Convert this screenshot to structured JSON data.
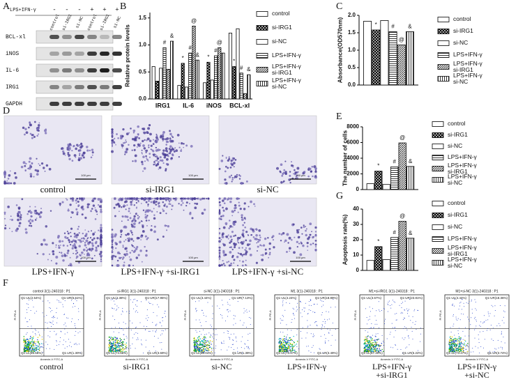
{
  "panel_labels": [
    "A",
    "B",
    "C",
    "D",
    "E",
    "F",
    "G"
  ],
  "blot": {
    "treatment": "LPS+IFN-γ",
    "signs": [
      "-",
      "-",
      "-",
      "+",
      "+",
      "+"
    ],
    "lanes": [
      "control",
      "si-IRG1",
      "si-NC",
      "control",
      "si-IRG1",
      "si-NC"
    ],
    "proteins": [
      "BCL-xl",
      "iNOS",
      "IL-6",
      "IRG1",
      "GAPDH"
    ]
  },
  "micrographs": {
    "scale_bar": "100 μm",
    "captions": [
      "control",
      "si-IRG1",
      "si-NC",
      "LPS+IFN-γ",
      "LPS+IFN-γ +si-IRG1",
      "LPS+IFN-γ +si-NC"
    ]
  },
  "flow": {
    "x_label": "Annexin-V FITC-A",
    "y_label": "PI PE-A",
    "plots": [
      {
        "title": "control 3(1)-240318 : P1",
        "UL": "Q1-UL(2.54%)",
        "UR": "Q1-UR(6.61%)",
        "LL": "Q1-LL(89.55%)",
        "LR": "Q1-LR(1.30%)",
        "caption": [
          "control"
        ]
      },
      {
        "title": "si-IRG1 3(1)-240318 : P1",
        "UL": "Q1-UL(4.38%)",
        "UR": "Q1-UR(17.95%)",
        "LL": "Q1-LL(74.56%)",
        "LR": "Q1-LR(3.69%)",
        "caption": [
          "si-IRG1"
        ]
      },
      {
        "title": "si-NC 3(1)-240318 : P1",
        "UL": "Q1-UL(3.44%)",
        "UR": "Q1-UR(7.13%)",
        "LL": "Q1-LL(88.04%)",
        "LR": "Q1-LR(1.39%)",
        "caption": [
          "si-NC"
        ]
      },
      {
        "title": "M1 3(1)-240318 : P1",
        "UL": "Q1-UL(4.24%)",
        "UR": "Q1-UR(18.89%)",
        "LL": "Q1-LL(73.47%)",
        "LR": "Q1-LR(3.49%)",
        "caption": [
          "LPS+IFN-γ"
        ]
      },
      {
        "title": "M1+si-IRG1 3(1)-240318 : P1",
        "UL": "Q1-UL(3.67%)",
        "UR": "Q1-UR(23.81%)",
        "LL": "Q1-LL(67.30%)",
        "LR": "Q1-LR(5.22%)",
        "caption": [
          "LPS+IFN-γ",
          "+si-IRG1"
        ]
      },
      {
        "title": "M1+si-NC 3(1)-240318 : P1",
        "UL": "Q1-UL(4.44%)",
        "UR": "Q1-UR(18.36%)",
        "LL": "Q1-LL(73.47%)",
        "LR": "Q1-LR(3.74%)",
        "caption": [
          "LPS+IFN-γ",
          "+si-NC"
        ]
      }
    ]
  },
  "chart_data": [
    {
      "type": "bar",
      "y_label": "Relative protein levels",
      "categories": [
        "IRG1",
        "IL-6",
        "iNOS",
        "BCL-xl"
      ],
      "ylim": [
        0,
        1.6
      ],
      "yticks": [
        {
          "value": 0,
          "label": "0.0"
        },
        0.5,
        {
          "value": 1,
          "label": "1.0"
        },
        1.5
      ],
      "series": [
        {
          "name": "control",
          "color": "#ffffff",
          "pattern": "none",
          "values": [
            0.6,
            0.25,
            0.3,
            1.22
          ],
          "sig": [
            null,
            null,
            null,
            null
          ]
        },
        {
          "name": "si-IRG1",
          "color": "#ffffff",
          "pattern": "cross",
          "values": [
            0.33,
            0.66,
            0.68,
            0.6
          ],
          "sig": [
            null,
            "*",
            "*",
            "*"
          ]
        },
        {
          "name": "si-NC",
          "color": "#ffffff",
          "pattern": "none",
          "values": [
            0.57,
            0.22,
            0.35,
            1.3
          ],
          "sig": [
            null,
            null,
            null,
            null
          ]
        },
        {
          "name": "LPS+IFN-γ",
          "color": "#ffffff",
          "pattern": "hlines",
          "values": [
            0.95,
            0.85,
            0.8,
            0.48
          ],
          "sig": [
            "#",
            "#",
            "#",
            "#"
          ]
        },
        {
          "name": "LPS+IFN-γ si-IRG1",
          "color": "#ffffff",
          "pattern": "diag",
          "values": [
            0.55,
            1.35,
            0.95,
            0.1
          ],
          "sig": [
            null,
            "@",
            "@",
            null
          ]
        },
        {
          "name": "LPS+IFN-γ si-NC",
          "color": "#ffffff",
          "pattern": "vlines",
          "values": [
            1.07,
            0.72,
            0.85,
            0.45
          ],
          "sig": [
            "&",
            "&",
            null,
            "&"
          ]
        }
      ]
    },
    {
      "type": "bar",
      "y_label": "Absorbance(OD570nm)",
      "categories": [
        null
      ],
      "ylim": [
        0,
        2
      ],
      "yticks": [
        {
          "value": 0,
          "label": "0.0"
        },
        0.5,
        {
          "value": 1,
          "label": "1.0"
        },
        1.5,
        {
          "value": 2,
          "label": "2.0"
        }
      ],
      "series": [
        {
          "name": "control",
          "color": "#ffffff",
          "pattern": "none",
          "values": [
            1.83
          ],
          "sig": [
            null
          ]
        },
        {
          "name": "si-IRG1",
          "color": "#ffffff",
          "pattern": "cross",
          "values": [
            1.58
          ],
          "sig": [
            "*"
          ]
        },
        {
          "name": "si-NC",
          "color": "#ffffff",
          "pattern": "none",
          "values": [
            1.85
          ],
          "sig": [
            null
          ]
        },
        {
          "name": "LPS+IFN-γ",
          "color": "#ffffff",
          "pattern": "hlines",
          "values": [
            1.53
          ],
          "sig": [
            "#"
          ]
        },
        {
          "name": "LPS+IFN-γ si-IRG1",
          "color": "#ffffff",
          "pattern": "diag",
          "values": [
            1.15
          ],
          "sig": [
            "@"
          ]
        },
        {
          "name": "LPS+IFN-γ si-NC",
          "color": "#ffffff",
          "pattern": "vlines",
          "values": [
            1.53
          ],
          "sig": [
            "&"
          ]
        }
      ]
    },
    {
      "type": "bar",
      "y_label": "The number of cells",
      "categories": [
        null
      ],
      "ylim": [
        0,
        8000
      ],
      "yticks": [
        0,
        2000,
        4000,
        6000,
        8000
      ],
      "series": [
        {
          "name": "control",
          "color": "#ffffff",
          "pattern": "none",
          "values": [
            750
          ],
          "sig": [
            null
          ]
        },
        {
          "name": "si-IRG1",
          "color": "#ffffff",
          "pattern": "cross",
          "values": [
            2350
          ],
          "sig": [
            "*"
          ]
        },
        {
          "name": "si-NC",
          "color": "#ffffff",
          "pattern": "none",
          "values": [
            650
          ],
          "sig": [
            null
          ]
        },
        {
          "name": "LPS+IFN-γ",
          "color": "#ffffff",
          "pattern": "hlines",
          "values": [
            2900
          ],
          "sig": [
            "#"
          ]
        },
        {
          "name": "LPS+IFN-γ si-IRG1",
          "color": "#ffffff",
          "pattern": "diag",
          "values": [
            5950
          ],
          "sig": [
            "@"
          ]
        },
        {
          "name": "LPS+IFN-γ si-NC",
          "color": "#ffffff",
          "pattern": "vlines",
          "values": [
            2950
          ],
          "sig": [
            "&"
          ]
        }
      ]
    },
    {
      "type": "bar",
      "y_label": "Apoptosis rate(%)",
      "categories": [
        null
      ],
      "ylim": [
        0,
        40
      ],
      "yticks": [
        0,
        10,
        20,
        30,
        40
      ],
      "series": [
        {
          "name": "control",
          "color": "#ffffff",
          "pattern": "none",
          "values": [
            6.5
          ],
          "sig": [
            null
          ]
        },
        {
          "name": "si-IRG1",
          "color": "#ffffff",
          "pattern": "cross",
          "values": [
            15.5
          ],
          "sig": [
            "*"
          ]
        },
        {
          "name": "si-NC",
          "color": "#ffffff",
          "pattern": "none",
          "values": [
            7
          ],
          "sig": [
            null
          ]
        },
        {
          "name": "LPS+IFN-γ",
          "color": "#ffffff",
          "pattern": "hlines",
          "values": [
            21.5
          ],
          "sig": [
            "#"
          ]
        },
        {
          "name": "LPS+IFN-γ si-IRG1",
          "color": "#ffffff",
          "pattern": "diag",
          "values": [
            32
          ],
          "sig": [
            "@"
          ]
        },
        {
          "name": "LPS+IFN-γ si-NC",
          "color": "#ffffff",
          "pattern": "vlines",
          "values": [
            21
          ],
          "sig": [
            "&"
          ]
        }
      ]
    }
  ]
}
